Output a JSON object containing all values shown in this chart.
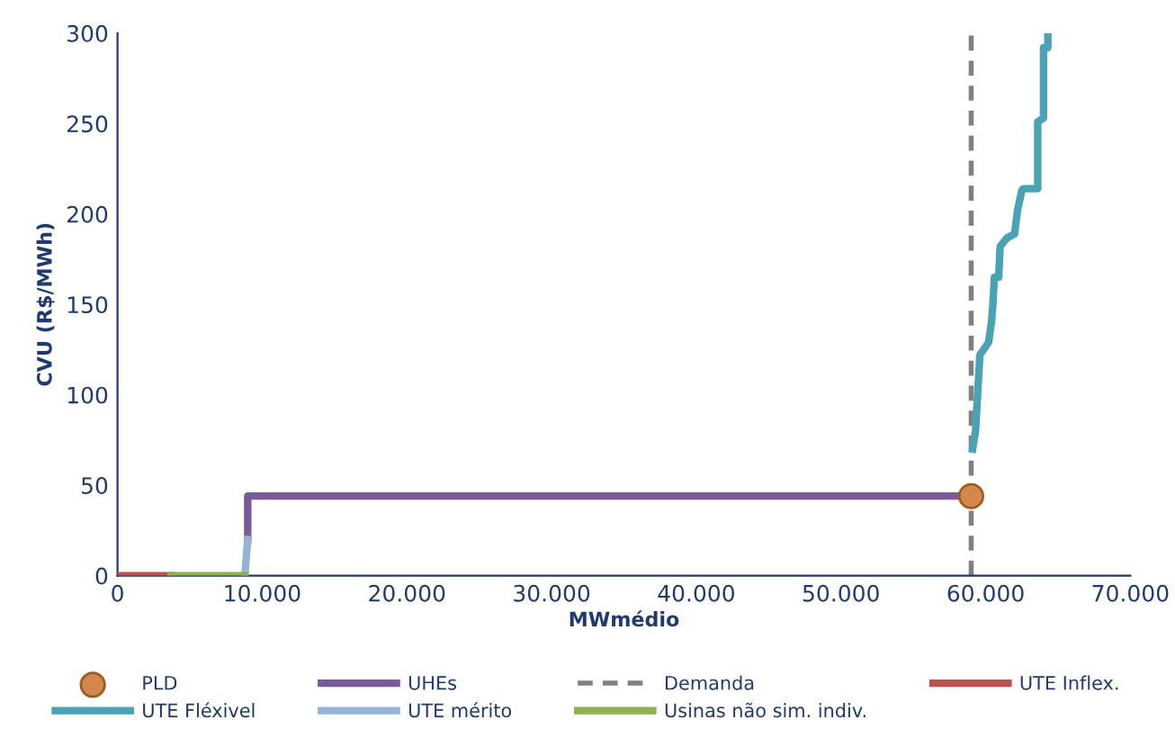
{
  "chart_data": {
    "type": "line",
    "xlabel": "MWmédio",
    "ylabel": "CVU (R$/MWh)",
    "xlim": [
      0,
      70000
    ],
    "ylim": [
      0,
      300
    ],
    "xticks": [
      {
        "value": 0,
        "label": "0"
      },
      {
        "value": 10000,
        "label": "10.000"
      },
      {
        "value": 20000,
        "label": "20.000"
      },
      {
        "value": 30000,
        "label": "30.000"
      },
      {
        "value": 40000,
        "label": "40.000"
      },
      {
        "value": 50000,
        "label": "50.000"
      },
      {
        "value": 60000,
        "label": "60.000"
      },
      {
        "value": 70000,
        "label": "70.000"
      }
    ],
    "yticks": [
      0,
      50,
      100,
      150,
      200,
      250,
      300
    ],
    "grid": false,
    "legend": "bottom",
    "series": [
      {
        "name": "PLD",
        "type": "scatter",
        "marker": "circle",
        "color": "#d2884a",
        "x": [
          59000
        ],
        "values": [
          44
        ]
      },
      {
        "name": "UHEs",
        "line_style": "solid",
        "color": "#7a5a99",
        "x": [
          9000,
          9000,
          59000
        ],
        "values": [
          20,
          44,
          44
        ]
      },
      {
        "name": "Demanda",
        "line_style": "dashed",
        "color": "#808080",
        "x": [
          59000,
          59000
        ],
        "values": [
          0,
          300
        ]
      },
      {
        "name": "UTE Inflex.",
        "line_style": "solid",
        "color": "#c0504d",
        "x": [
          0,
          3700
        ],
        "values": [
          0,
          0
        ]
      },
      {
        "name": "UTE Fléxivel",
        "line_style": "solid",
        "color": "#4aa3b5",
        "x": [
          59100,
          59300,
          59600,
          60200,
          60400,
          60500,
          60600,
          60900,
          61000,
          61500,
          62000,
          62200,
          62500,
          62600,
          63600,
          63600,
          64000,
          64000,
          64300,
          64300
        ],
        "values": [
          70,
          80,
          122,
          129,
          140,
          150,
          165,
          165,
          182,
          187,
          189,
          202,
          213,
          214,
          214,
          251,
          253,
          292,
          292,
          300
        ]
      },
      {
        "name": "UTE mérito",
        "line_style": "solid",
        "color": "#95b3d7",
        "x": [
          8800,
          9000
        ],
        "values": [
          0,
          20
        ]
      },
      {
        "name": "Usinas não sim. indiv.",
        "line_style": "solid",
        "color": "#8db050",
        "x": [
          3700,
          8800
        ],
        "values": [
          0,
          0
        ]
      }
    ]
  }
}
